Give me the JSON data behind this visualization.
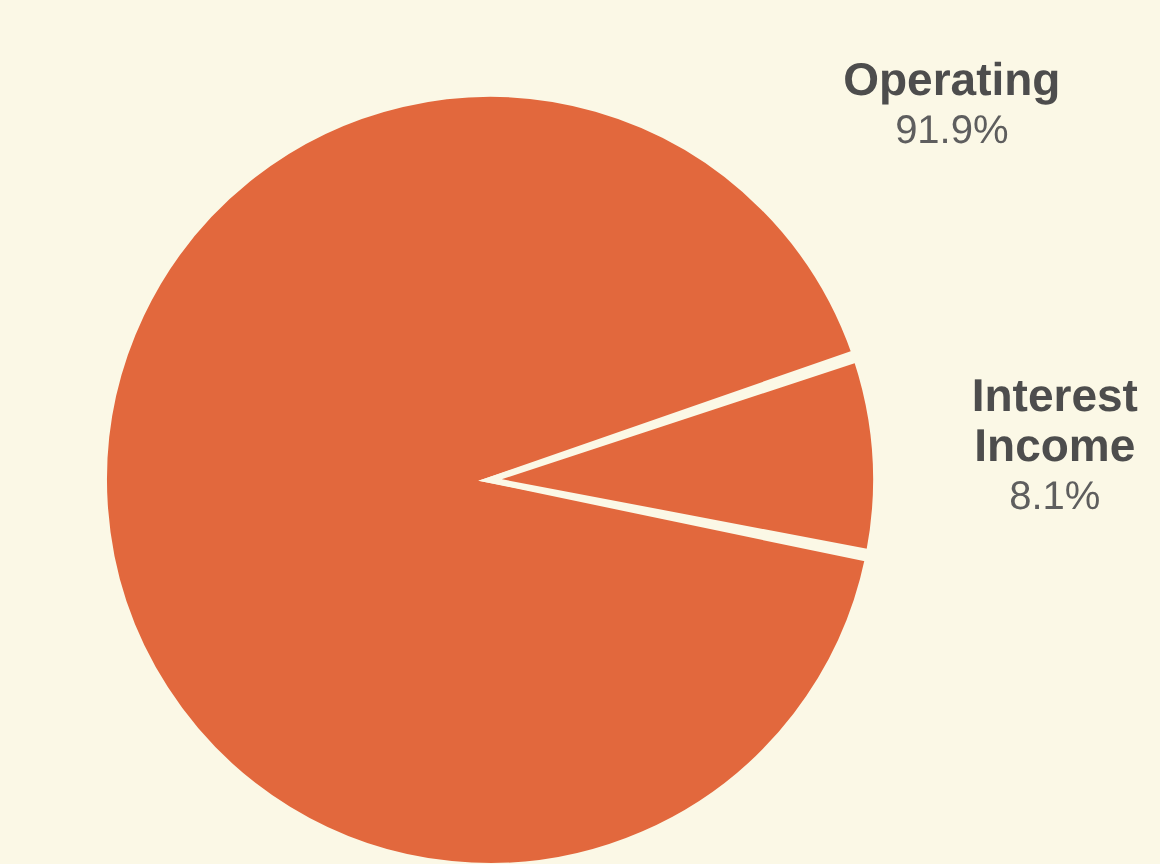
{
  "chart_data": {
    "type": "pie",
    "categories": [
      "Operating",
      "Interest Income"
    ],
    "values": [
      91.9,
      8.1
    ],
    "value_labels": [
      "91.9%",
      "8.1%"
    ],
    "colors": [
      "#e2683d",
      "#e2683d"
    ],
    "legend": false
  }
}
